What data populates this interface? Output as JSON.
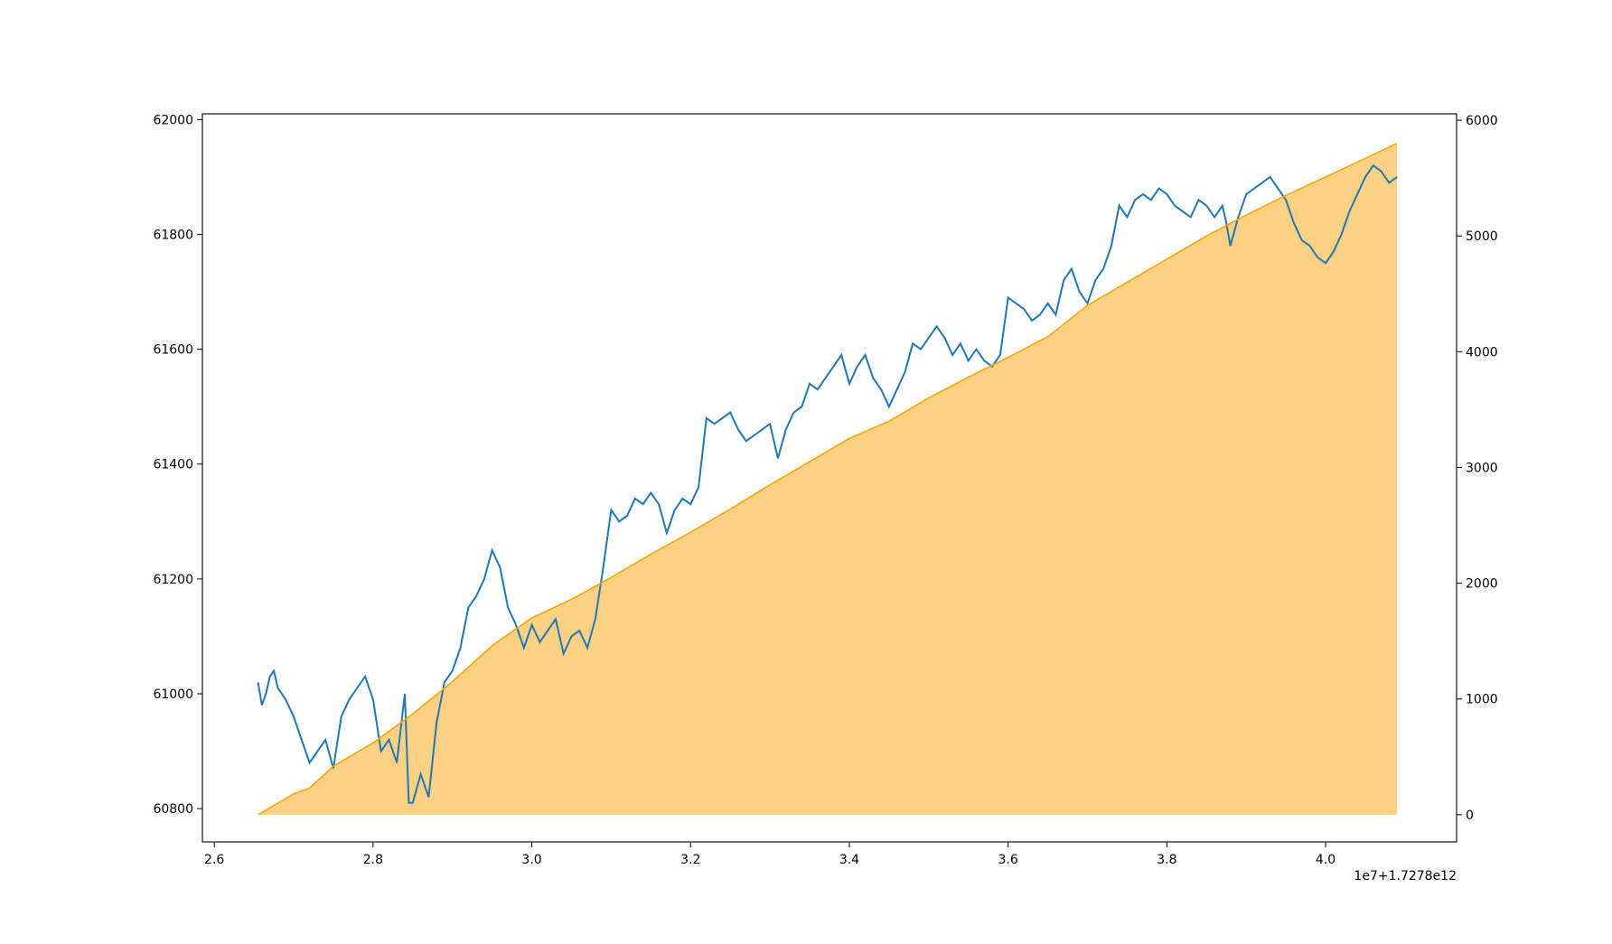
{
  "chart_data": {
    "type": "line",
    "title": "",
    "xlabel": "",
    "ylabel": "",
    "y2label": "",
    "grid": false,
    "legend": "none",
    "x_offset_label": "1e7+1.7278e12",
    "xlim": [
      2.585,
      4.165
    ],
    "x_ticks": [
      2.6,
      2.8,
      3.0,
      3.2,
      3.4,
      3.6,
      3.8,
      4.0
    ],
    "x_tick_labels": [
      "2.6",
      "2.8",
      "3.0",
      "3.2",
      "3.4",
      "3.6",
      "3.8",
      "4.0"
    ],
    "ylim_left": [
      60742,
      62010
    ],
    "y_left_ticks": [
      60800,
      61000,
      61200,
      61400,
      61600,
      61800,
      62000
    ],
    "y_left_tick_labels": [
      "60800",
      "61000",
      "61200",
      "61400",
      "61600",
      "61800",
      "62000"
    ],
    "ylim_right": [
      -235,
      6055
    ],
    "y_right_ticks": [
      0,
      1000,
      2000,
      3000,
      4000,
      5000,
      6000
    ],
    "y_right_tick_labels": [
      "0",
      "1000",
      "2000",
      "3000",
      "4000",
      "5000",
      "6000"
    ],
    "series": [
      {
        "axis": "left",
        "style": "line",
        "color": "#1f77b4",
        "x": [
          2.655,
          2.66,
          2.665,
          2.67,
          2.675,
          2.68,
          2.69,
          2.7,
          2.71,
          2.72,
          2.73,
          2.74,
          2.75,
          2.76,
          2.77,
          2.78,
          2.79,
          2.8,
          2.81,
          2.82,
          2.83,
          2.84,
          2.845,
          2.85,
          2.86,
          2.87,
          2.88,
          2.89,
          2.9,
          2.91,
          2.92,
          2.93,
          2.94,
          2.95,
          2.96,
          2.97,
          2.98,
          2.99,
          3.0,
          3.01,
          3.02,
          3.03,
          3.04,
          3.05,
          3.06,
          3.07,
          3.08,
          3.09,
          3.1,
          3.11,
          3.12,
          3.13,
          3.14,
          3.15,
          3.16,
          3.17,
          3.18,
          3.19,
          3.2,
          3.21,
          3.22,
          3.23,
          3.24,
          3.25,
          3.26,
          3.27,
          3.28,
          3.29,
          3.3,
          3.31,
          3.32,
          3.33,
          3.34,
          3.35,
          3.36,
          3.37,
          3.38,
          3.39,
          3.4,
          3.41,
          3.42,
          3.43,
          3.44,
          3.45,
          3.46,
          3.47,
          3.48,
          3.49,
          3.5,
          3.51,
          3.52,
          3.53,
          3.54,
          3.55,
          3.56,
          3.57,
          3.58,
          3.59,
          3.6,
          3.61,
          3.62,
          3.63,
          3.64,
          3.65,
          3.66,
          3.67,
          3.68,
          3.69,
          3.7,
          3.71,
          3.72,
          3.73,
          3.74,
          3.75,
          3.76,
          3.77,
          3.78,
          3.79,
          3.8,
          3.81,
          3.82,
          3.83,
          3.84,
          3.85,
          3.86,
          3.87,
          3.875,
          3.88,
          3.89,
          3.9,
          3.91,
          3.92,
          3.93,
          3.94,
          3.95,
          3.96,
          3.97,
          3.98,
          3.99,
          4.0,
          4.01,
          4.02,
          4.03,
          4.04,
          4.05,
          4.06,
          4.07,
          4.08,
          4.09
        ],
        "y": [
          61020,
          60980,
          61000,
          61030,
          61040,
          61010,
          60990,
          60960,
          60920,
          60880,
          60900,
          60920,
          60870,
          60960,
          60990,
          61010,
          61030,
          60990,
          60900,
          60920,
          60880,
          61000,
          60810,
          60810,
          60860,
          60820,
          60950,
          61020,
          61040,
          61080,
          61150,
          61170,
          61200,
          61250,
          61220,
          61150,
          61120,
          61080,
          61120,
          61090,
          61110,
          61130,
          61070,
          61100,
          61110,
          61080,
          61130,
          61220,
          61320,
          61300,
          61310,
          61340,
          61330,
          61350,
          61330,
          61280,
          61320,
          61340,
          61330,
          61360,
          61480,
          61470,
          61480,
          61490,
          61460,
          61440,
          61450,
          61460,
          61470,
          61410,
          61460,
          61490,
          61500,
          61540,
          61530,
          61550,
          61570,
          61590,
          61540,
          61570,
          61590,
          61550,
          61530,
          61500,
          61530,
          61560,
          61610,
          61600,
          61620,
          61640,
          61620,
          61590,
          61610,
          61580,
          61600,
          61580,
          61570,
          61590,
          61690,
          61680,
          61670,
          61650,
          61660,
          61680,
          61660,
          61720,
          61740,
          61700,
          61680,
          61720,
          61740,
          61780,
          61850,
          61830,
          61860,
          61870,
          61860,
          61880,
          61870,
          61850,
          61840,
          61830,
          61860,
          61850,
          61830,
          61850,
          61820,
          61780,
          61830,
          61870,
          61880,
          61890,
          61900,
          61880,
          61860,
          61820,
          61790,
          61780,
          61760,
          61750,
          61770,
          61800,
          61840,
          61870,
          61900,
          61920,
          61910,
          61890,
          61900
        ]
      },
      {
        "axis": "right",
        "style": "area",
        "color": "#ffa500",
        "fill_color": "#fdc96f",
        "x": [
          2.655,
          2.7,
          2.72,
          2.75,
          2.8,
          2.85,
          2.9,
          2.95,
          3.0,
          3.05,
          3.1,
          3.15,
          3.2,
          3.25,
          3.3,
          3.35,
          3.4,
          3.45,
          3.5,
          3.55,
          3.6,
          3.65,
          3.7,
          3.75,
          3.8,
          3.85,
          3.9,
          3.95,
          4.0,
          4.05,
          4.09
        ],
        "y": [
          0,
          180,
          230,
          420,
          620,
          870,
          1150,
          1460,
          1700,
          1860,
          2050,
          2250,
          2440,
          2640,
          2850,
          3050,
          3250,
          3400,
          3600,
          3780,
          3950,
          4130,
          4400,
          4600,
          4800,
          5000,
          5180,
          5350,
          5510,
          5670,
          5800
        ]
      }
    ]
  }
}
